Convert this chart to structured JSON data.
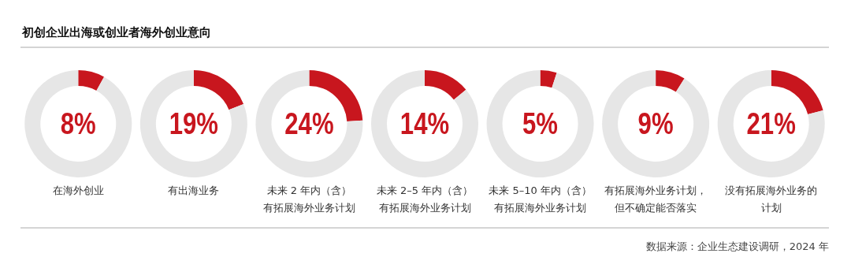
{
  "chart_data": [
    {
      "type": "donut",
      "title": "初创企业出海或创业者海外创业意向",
      "xlabel": "在海外创业",
      "categories": [
        null,
        null
      ],
      "values": [
        8,
        92
      ],
      "colors": [
        "#c8161e",
        "#e6e6e6"
      ],
      "value_labels": [
        "8%",
        null
      ]
    },
    {
      "type": "donut",
      "xlabel": "有出海业务",
      "categories": [
        null,
        null
      ],
      "values": [
        19,
        81
      ],
      "colors": [
        "#c8161e",
        "#e6e6e6"
      ],
      "value_labels": [
        "19%",
        null
      ]
    },
    {
      "type": "donut",
      "xlabel": "未来 2 年内（含）有拓展海外业务计划",
      "categories": [
        null,
        null
      ],
      "values": [
        24,
        76
      ],
      "colors": [
        "#c8161e",
        "#e6e6e6"
      ],
      "value_labels": [
        "24%",
        null
      ]
    },
    {
      "type": "donut",
      "xlabel": "未来 2–5 年内（含）有拓展海外业务计划",
      "categories": [
        null,
        null
      ],
      "values": [
        14,
        86
      ],
      "colors": [
        "#c8161e",
        "#e6e6e6"
      ],
      "value_labels": [
        "14%",
        null
      ]
    },
    {
      "type": "donut",
      "xlabel": "未来 5–10 年内（含）有拓展海外业务计划",
      "categories": [
        null,
        null
      ],
      "values": [
        5,
        95
      ],
      "colors": [
        "#c8161e",
        "#e6e6e6"
      ],
      "value_labels": [
        "5%",
        null
      ]
    },
    {
      "type": "donut",
      "xlabel": "有拓展海外业务计划，但不确定能否落实",
      "categories": [
        null,
        null
      ],
      "values": [
        9,
        91
      ],
      "colors": [
        "#c8161e",
        "#e6e6e6"
      ],
      "value_labels": [
        "9%",
        null
      ]
    },
    {
      "type": "donut",
      "xlabel": "没有拓展海外业务的计划",
      "categories": [
        null,
        null
      ],
      "values": [
        21,
        79
      ],
      "colors": [
        "#c8161e",
        "#e6e6e6"
      ],
      "value_labels": [
        "21%",
        null
      ],
      "annotations": [
        "数据来源：企业生态建设调研，2024 年"
      ]
    }
  ]
}
